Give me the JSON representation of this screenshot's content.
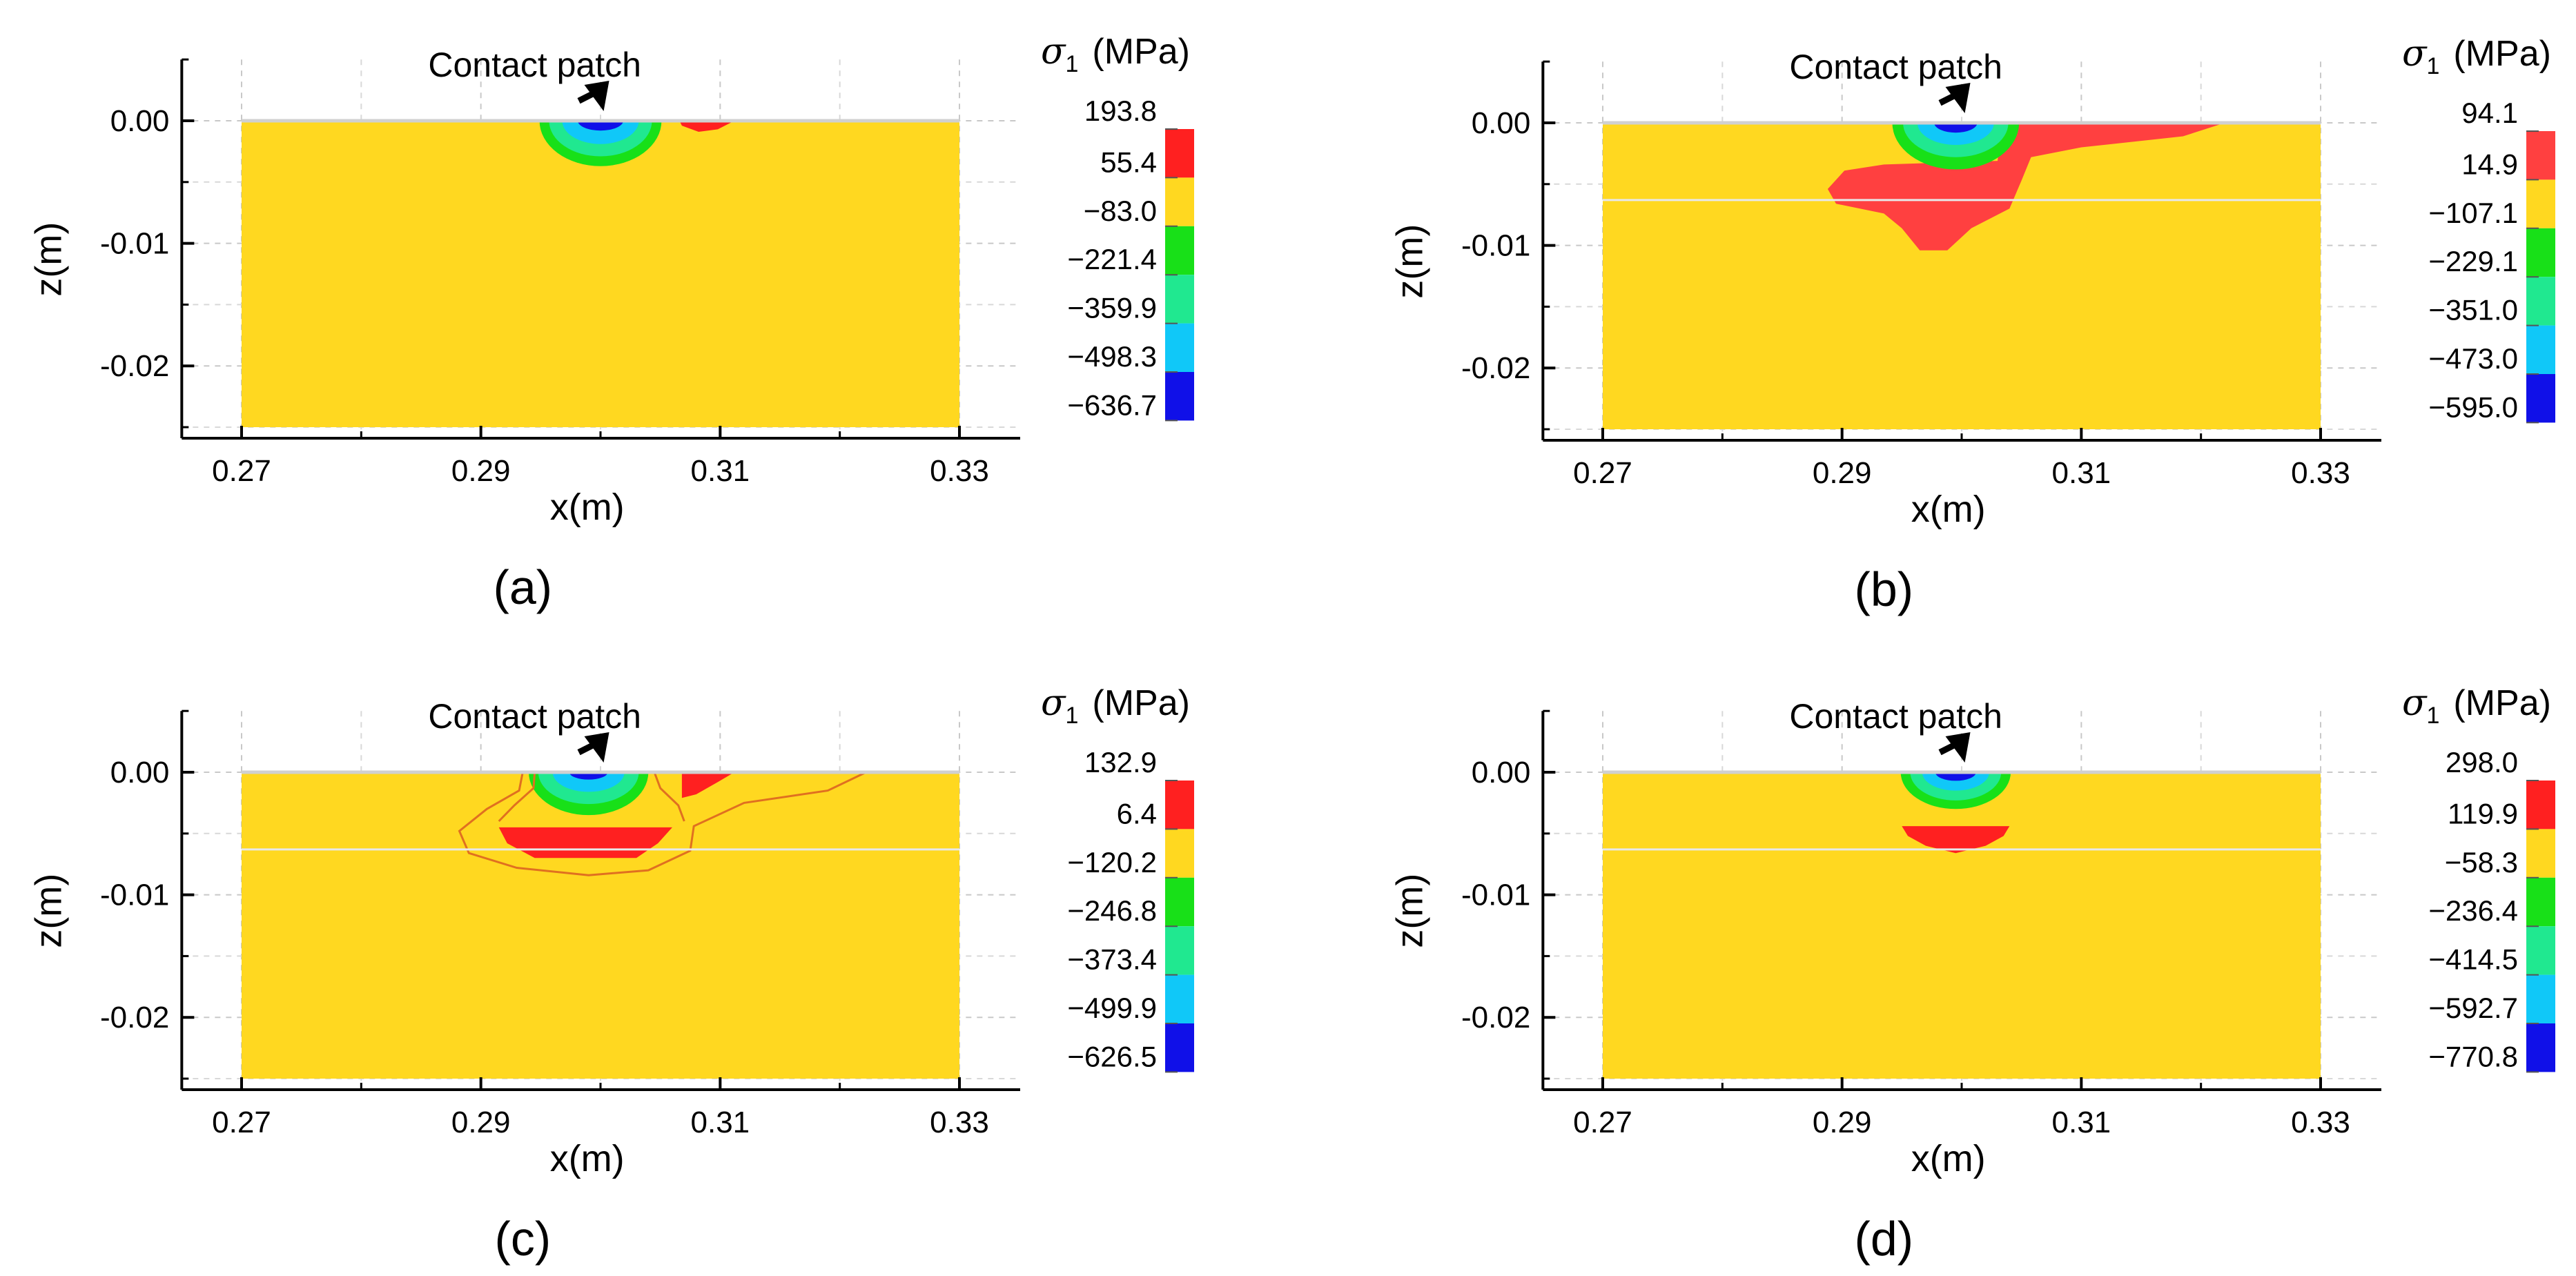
{
  "figure": {
    "description": "Four contour plots of maximum principal stress sigma_1 under the wheel-rail contact patch"
  },
  "chart_data": [
    {
      "type": "heatmap",
      "panel": "(a)",
      "annotation": "Contact patch",
      "xlabel": "x(m)",
      "ylabel": "z(m)",
      "xlim": [
        0.265,
        0.335
      ],
      "ylim": [
        -0.026,
        0.005
      ],
      "xticks": [
        0.27,
        0.29,
        0.31,
        0.33
      ],
      "xtick_labels": [
        "0.27",
        "0.29",
        "0.31",
        "0.33"
      ],
      "yticks": [
        0.0,
        -0.01,
        -0.02
      ],
      "ytick_labels": [
        "0.00",
        "-0.01",
        "-0.02"
      ],
      "domain": {
        "x": [
          0.27,
          0.33
        ],
        "z": [
          -0.025,
          0.0
        ]
      },
      "grid": true,
      "colorbar": {
        "title_symbol": "σ",
        "title_subscript": "1",
        "title_unit": "(MPa)",
        "levels": [
          193.8,
          55.4,
          -83.0,
          -221.4,
          -359.9,
          -498.3,
          -636.7
        ],
        "level_labels": [
          "193.8",
          "55.4",
          "−83.0",
          "−221.4",
          "−359.9",
          "−498.3",
          "−636.7"
        ],
        "colors": [
          "#ff2020",
          "#ffd820",
          "#18e018",
          "#20e890",
          "#10c8f8",
          "#1010e8"
        ]
      },
      "regions": [
        {
          "level": 2,
          "shape": "ellipse",
          "cx": 0.3,
          "cz": 0.0,
          "rx": 0.0051,
          "rz": 0.0037
        },
        {
          "level": 3,
          "shape": "ellipse",
          "cx": 0.3,
          "cz": 0.0,
          "rx": 0.0043,
          "rz": 0.0029
        },
        {
          "level": 4,
          "shape": "ellipse",
          "cx": 0.3,
          "cz": 0.0,
          "rx": 0.0032,
          "rz": 0.0019
        },
        {
          "level": 5,
          "shape": "ellipse",
          "cx": 0.3,
          "cz": 0.0,
          "rx": 0.0019,
          "rz": 0.0008
        },
        {
          "level": 0,
          "shape": "polygon",
          "points": [
            [
              0.3066,
              0.0
            ],
            [
              0.3112,
              0.0
            ],
            [
              0.3098,
              -0.0007
            ],
            [
              0.3082,
              -0.0009
            ],
            [
              0.3068,
              -0.0004
            ]
          ]
        }
      ],
      "lines": []
    },
    {
      "type": "heatmap",
      "panel": "(b)",
      "annotation": "Contact patch",
      "xlabel": "x(m)",
      "ylabel": "z(m)",
      "xlim": [
        0.265,
        0.335
      ],
      "ylim": [
        -0.026,
        0.005
      ],
      "xticks": [
        0.27,
        0.29,
        0.31,
        0.33
      ],
      "xtick_labels": [
        "0.27",
        "0.29",
        "0.31",
        "0.33"
      ],
      "yticks": [
        0.0,
        -0.01,
        -0.02
      ],
      "ytick_labels": [
        "0.00",
        "-0.01",
        "-0.02"
      ],
      "domain": {
        "x": [
          0.27,
          0.33
        ],
        "z": [
          -0.025,
          0.0
        ]
      },
      "grid": true,
      "colorbar": {
        "title_symbol": "σ",
        "title_subscript": "1",
        "title_unit": "(MPa)",
        "levels": [
          94.1,
          14.9,
          -107.1,
          -229.1,
          -351.0,
          -473.0,
          -595.0
        ],
        "level_labels": [
          "94.1",
          "14.9",
          "−107.1",
          "−229.1",
          "−351.0",
          "−473.0",
          "−595.0"
        ],
        "colors": [
          "#ff4040",
          "#ffd820",
          "#18e018",
          "#20e890",
          "#10c8f8",
          "#1010e8"
        ]
      },
      "regions": [
        {
          "level": 0,
          "shape": "polygon",
          "points": [
            [
              0.3032,
              0.0
            ],
            [
              0.322,
              0.0
            ],
            [
              0.3185,
              -0.0011
            ],
            [
              0.31,
              -0.002
            ],
            [
              0.3058,
              -0.0028
            ],
            [
              0.305,
              -0.0047
            ],
            [
              0.304,
              -0.007
            ],
            [
              0.3008,
              -0.0086
            ],
            [
              0.2988,
              -0.0104
            ],
            [
              0.2965,
              -0.0104
            ],
            [
              0.295,
              -0.0086
            ],
            [
              0.2935,
              -0.0074
            ],
            [
              0.2895,
              -0.0066
            ],
            [
              0.2888,
              -0.0054
            ],
            [
              0.2902,
              -0.0039
            ],
            [
              0.2935,
              -0.0034
            ],
            [
              0.303,
              -0.0031
            ],
            [
              0.3032,
              -0.0014
            ]
          ]
        },
        {
          "level": 2,
          "shape": "ellipse",
          "cx": 0.2995,
          "cz": 0.0,
          "rx": 0.0053,
          "rz": 0.0038
        },
        {
          "level": 3,
          "shape": "ellipse",
          "cx": 0.2995,
          "cz": 0.0,
          "rx": 0.0044,
          "rz": 0.0028
        },
        {
          "level": 4,
          "shape": "ellipse",
          "cx": 0.2995,
          "cz": 0.0,
          "rx": 0.0032,
          "rz": 0.0018
        },
        {
          "level": 5,
          "shape": "ellipse",
          "cx": 0.2995,
          "cz": 0.0,
          "rx": 0.0018,
          "rz": 0.0008
        }
      ],
      "lines": []
    },
    {
      "type": "heatmap",
      "panel": "(c)",
      "annotation": "Contact patch",
      "xlabel": "x(m)",
      "ylabel": "z(m)",
      "xlim": [
        0.265,
        0.335
      ],
      "ylim": [
        -0.026,
        0.005
      ],
      "xticks": [
        0.27,
        0.29,
        0.31,
        0.33
      ],
      "xtick_labels": [
        "0.27",
        "0.29",
        "0.31",
        "0.33"
      ],
      "yticks": [
        0.0,
        -0.01,
        -0.02
      ],
      "ytick_labels": [
        "0.00",
        "-0.01",
        "-0.02"
      ],
      "domain": {
        "x": [
          0.27,
          0.33
        ],
        "z": [
          -0.025,
          0.0
        ]
      },
      "grid": true,
      "colorbar": {
        "title_symbol": "σ",
        "title_subscript": "1",
        "title_unit": "(MPa)",
        "levels": [
          132.9,
          6.4,
          -120.2,
          -246.8,
          -373.4,
          -499.9,
          -626.5
        ],
        "level_labels": [
          "132.9",
          "6.4",
          "−120.2",
          "−246.8",
          "−373.4",
          "−499.9",
          "−626.5"
        ],
        "colors": [
          "#ff2020",
          "#ffd820",
          "#18e018",
          "#20e890",
          "#10c8f8",
          "#1010e8"
        ]
      },
      "regions": [
        {
          "level": 0,
          "shape": "polygon",
          "points": [
            [
              0.3068,
              0.0
            ],
            [
              0.3112,
              0.0
            ],
            [
              0.3098,
              -0.0008
            ],
            [
              0.308,
              -0.0018
            ],
            [
              0.3068,
              -0.0021
            ]
          ]
        },
        {
          "level": 0,
          "shape": "polygon",
          "points": [
            [
              0.2915,
              -0.0045
            ],
            [
              0.306,
              -0.0045
            ],
            [
              0.3048,
              -0.0058
            ],
            [
              0.303,
              -0.007
            ],
            [
              0.2945,
              -0.007
            ],
            [
              0.2922,
              -0.0058
            ]
          ]
        },
        {
          "level": 2,
          "shape": "ellipse",
          "cx": 0.299,
          "cz": 0.0,
          "rx": 0.005,
          "rz": 0.0035
        },
        {
          "level": 3,
          "shape": "ellipse",
          "cx": 0.299,
          "cz": 0.0,
          "rx": 0.0042,
          "rz": 0.0026
        },
        {
          "level": 4,
          "shape": "ellipse",
          "cx": 0.299,
          "cz": 0.0,
          "rx": 0.003,
          "rz": 0.0016
        },
        {
          "level": 5,
          "shape": "ellipse",
          "cx": 0.299,
          "cz": 0.0,
          "rx": 0.0016,
          "rz": 0.0006
        }
      ],
      "lines": [
        {
          "color": "#e07020",
          "points": [
            [
              0.2935,
              0.0
            ],
            [
              0.2932,
              -0.0015
            ],
            [
              0.2905,
              -0.003
            ],
            [
              0.2882,
              -0.0048
            ],
            [
              0.289,
              -0.0066
            ],
            [
              0.293,
              -0.0078
            ],
            [
              0.299,
              -0.0084
            ],
            [
              0.304,
              -0.008
            ],
            [
              0.3075,
              -0.0064
            ],
            [
              0.3078,
              -0.0044
            ],
            [
              0.312,
              -0.0025
            ],
            [
              0.319,
              -0.0015
            ],
            [
              0.3222,
              0.0
            ]
          ]
        },
        {
          "color": "#e07020",
          "points": [
            [
              0.2945,
              0.0
            ],
            [
              0.2944,
              -0.0013
            ],
            [
              0.2928,
              -0.0027
            ],
            [
              0.2915,
              -0.004
            ]
          ]
        },
        {
          "color": "#e07020",
          "points": [
            [
              0.3045,
              0.0
            ],
            [
              0.305,
              -0.0013
            ],
            [
              0.3065,
              -0.0027
            ],
            [
              0.307,
              -0.004
            ]
          ]
        }
      ]
    },
    {
      "type": "heatmap",
      "panel": "(d)",
      "annotation": "Contact patch",
      "xlabel": "x(m)",
      "ylabel": "z(m)",
      "xlim": [
        0.265,
        0.335
      ],
      "ylim": [
        -0.026,
        0.005
      ],
      "xticks": [
        0.27,
        0.29,
        0.31,
        0.33
      ],
      "xtick_labels": [
        "0.27",
        "0.29",
        "0.31",
        "0.33"
      ],
      "yticks": [
        0.0,
        -0.01,
        -0.02
      ],
      "ytick_labels": [
        "0.00",
        "-0.01",
        "-0.02"
      ],
      "domain": {
        "x": [
          0.27,
          0.33
        ],
        "z": [
          -0.025,
          0.0
        ]
      },
      "grid": true,
      "colorbar": {
        "title_symbol": "σ",
        "title_subscript": "1",
        "title_unit": "(MPa)",
        "levels": [
          298.0,
          119.9,
          -58.3,
          -236.4,
          -414.5,
          -592.7,
          -770.8
        ],
        "level_labels": [
          "298.0",
          "119.9",
          "−58.3",
          "−236.4",
          "−414.5",
          "−592.7",
          "−770.8"
        ],
        "colors": [
          "#ff2020",
          "#ffd820",
          "#18e018",
          "#20e890",
          "#10c8f8",
          "#1010e8"
        ]
      },
      "regions": [
        {
          "level": 0,
          "shape": "polygon",
          "points": [
            [
              0.295,
              -0.0044
            ],
            [
              0.304,
              -0.0044
            ],
            [
              0.3035,
              -0.0052
            ],
            [
              0.302,
              -0.006
            ],
            [
              0.2995,
              -0.0066
            ],
            [
              0.297,
              -0.006
            ],
            [
              0.2955,
              -0.0052
            ]
          ]
        },
        {
          "level": 2,
          "shape": "ellipse",
          "cx": 0.2995,
          "cz": 0.0,
          "rx": 0.0046,
          "rz": 0.003
        },
        {
          "level": 3,
          "shape": "ellipse",
          "cx": 0.2995,
          "cz": 0.0,
          "rx": 0.0038,
          "rz": 0.0023
        },
        {
          "level": 4,
          "shape": "ellipse",
          "cx": 0.2995,
          "cz": 0.0,
          "rx": 0.0028,
          "rz": 0.0015
        },
        {
          "level": 5,
          "shape": "ellipse",
          "cx": 0.2995,
          "cz": 0.0,
          "rx": 0.0017,
          "rz": 0.0007
        }
      ],
      "lines": []
    }
  ]
}
